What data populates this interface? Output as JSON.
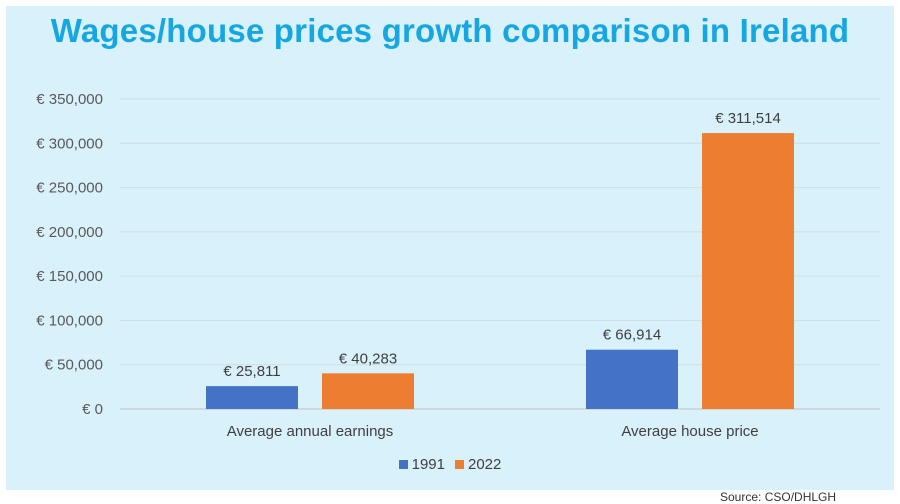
{
  "title": "Wages/house prices growth comparison in Ireland",
  "colors": {
    "s1991": "#4472c4",
    "s2022": "#ed7d31",
    "title": "#16a7e3",
    "background": "#d9f1fb",
    "grid": "#d0dde3"
  },
  "chart_data": {
    "type": "bar",
    "title": "Wages/house prices growth comparison in Ireland",
    "categories": [
      "Average annual earnings",
      "Average house price"
    ],
    "series": [
      {
        "name": "1991",
        "values": [
          25811,
          66914
        ],
        "labels": [
          "€ 25,811",
          "€ 66,914"
        ]
      },
      {
        "name": "2022",
        "values": [
          40283,
          311514
        ],
        "labels": [
          "€ 40,283",
          "€ 311,514"
        ]
      }
    ],
    "ylim": [
      0,
      350000
    ],
    "yticks": [
      0,
      50000,
      100000,
      150000,
      200000,
      250000,
      300000,
      350000
    ],
    "ytick_labels": [
      "€ 0",
      "€ 50,000",
      "€ 100,000",
      "€ 150,000",
      "€ 200,000",
      "€ 250,000",
      "€ 300,000",
      "€ 350,000"
    ],
    "grid": true,
    "legend": "bottom"
  },
  "source": "Source: CSO/DHLGH"
}
